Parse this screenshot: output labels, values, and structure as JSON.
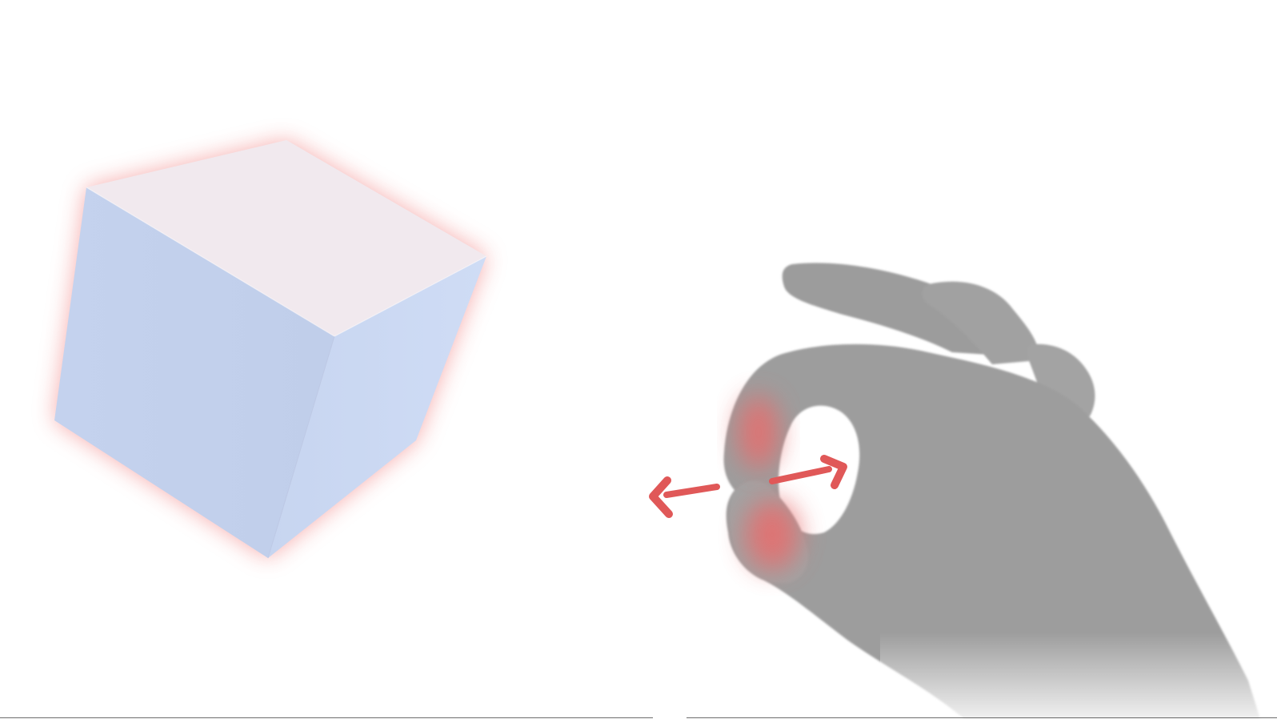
{
  "scene": {
    "object": {
      "icon": "cube-icon",
      "state": "highlighted",
      "highlight_color": "#ef6b6b",
      "face_colors": {
        "top": "#f1e9ee",
        "left": "#c3d1ec",
        "right": "#ccdaf3"
      }
    },
    "gesture": {
      "icon": "pinch-hand-icon",
      "name": "pinch release",
      "hand_color": "#9d9d9d",
      "fingertip_highlight_color": "#e86d6d",
      "arrow_color": "#e05858",
      "arrow_icons": [
        "arrow-left-icon",
        "arrow-right-icon"
      ]
    },
    "baseline_color": "#6e6e6e"
  }
}
